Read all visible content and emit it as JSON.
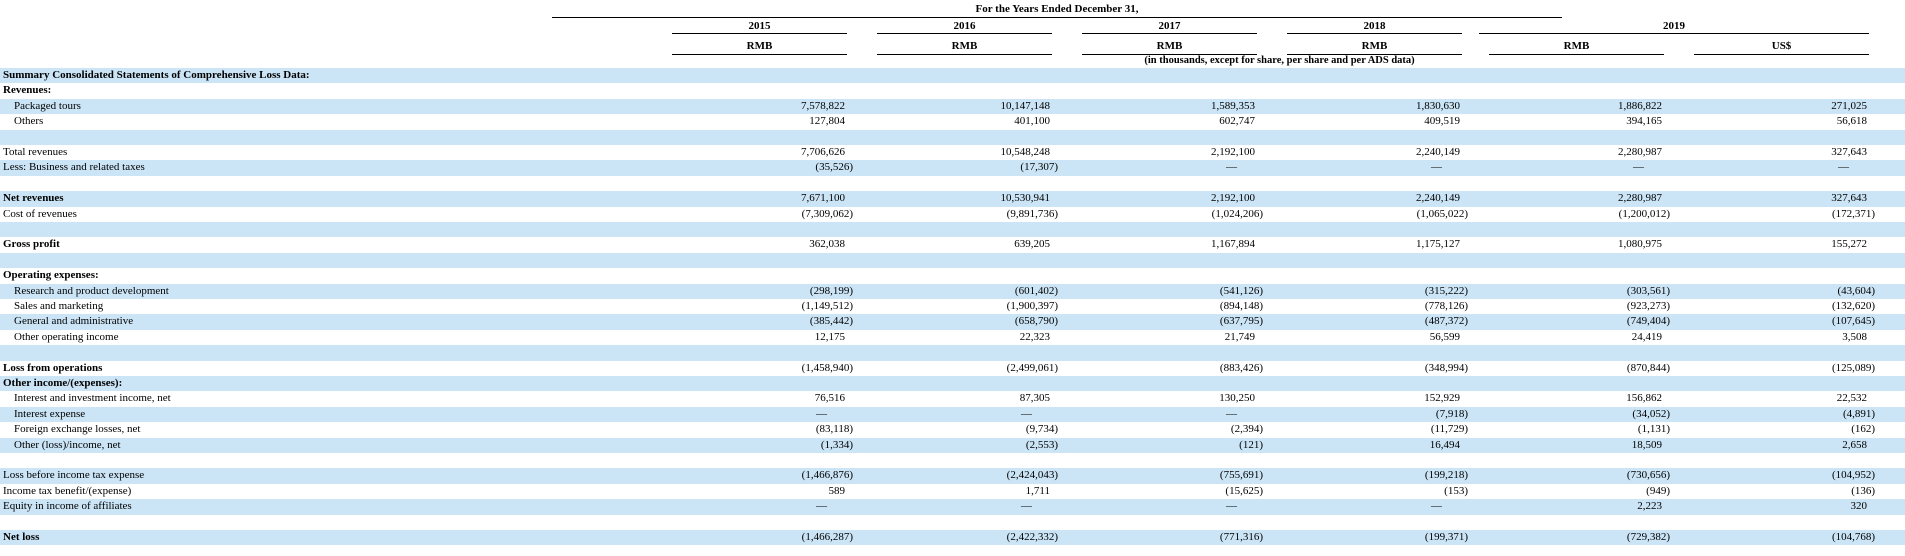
{
  "colors": {
    "row_highlight": "#cbe5f6",
    "text": "#000000",
    "rule": "#000000"
  },
  "header": {
    "spanner": "For the Years Ended December 31,",
    "note": "(in thousands, except for share, per share and per ADS data)",
    "years": [
      "2015",
      "2016",
      "2017",
      "2018",
      "2019"
    ],
    "currencies": [
      "RMB",
      "RMB",
      "RMB",
      "RMB",
      "RMB",
      "US$"
    ]
  },
  "table": {
    "rows": [
      {
        "label": "Summary Consolidated Statements of Comprehensive Loss Data:",
        "bold": true,
        "indent": false,
        "shaded": true,
        "values": [
          "",
          "",
          "",
          "",
          "",
          ""
        ]
      },
      {
        "label": "Revenues:",
        "bold": true,
        "indent": false,
        "shaded": false,
        "values": [
          "",
          "",
          "",
          "",
          "",
          ""
        ]
      },
      {
        "label": "Packaged tours",
        "bold": false,
        "indent": true,
        "shaded": true,
        "values": [
          "7,578,822",
          "10,147,148",
          "1,589,353",
          "1,830,630",
          "1,886,822",
          "271,025"
        ]
      },
      {
        "label": "Others",
        "bold": false,
        "indent": true,
        "shaded": false,
        "values": [
          "127,804",
          "401,100",
          "602,747",
          "409,519",
          "394,165",
          "56,618"
        ]
      },
      {
        "label": "",
        "bold": false,
        "indent": false,
        "shaded": true,
        "values": [
          "",
          "",
          "",
          "",
          "",
          ""
        ]
      },
      {
        "label": "Total revenues",
        "bold": false,
        "indent": false,
        "shaded": false,
        "values": [
          "7,706,626",
          "10,548,248",
          "2,192,100",
          "2,240,149",
          "2,280,987",
          "327,643"
        ]
      },
      {
        "label": "Less: Business and related taxes",
        "bold": false,
        "indent": false,
        "shaded": true,
        "values": [
          "(35,526)",
          "(17,307)",
          "—",
          "—",
          "—",
          "—"
        ]
      },
      {
        "label": "",
        "bold": false,
        "indent": false,
        "shaded": false,
        "values": [
          "",
          "",
          "",
          "",
          "",
          ""
        ]
      },
      {
        "label": "Net revenues",
        "bold": true,
        "indent": false,
        "shaded": true,
        "values": [
          "7,671,100",
          "10,530,941",
          "2,192,100",
          "2,240,149",
          "2,280,987",
          "327,643"
        ]
      },
      {
        "label": "Cost of revenues",
        "bold": false,
        "indent": false,
        "shaded": false,
        "values": [
          "(7,309,062)",
          "(9,891,736)",
          "(1,024,206)",
          "(1,065,022)",
          "(1,200,012)",
          "(172,371)"
        ]
      },
      {
        "label": "",
        "bold": false,
        "indent": false,
        "shaded": true,
        "values": [
          "",
          "",
          "",
          "",
          "",
          ""
        ]
      },
      {
        "label": "Gross profit",
        "bold": true,
        "indent": false,
        "shaded": false,
        "values": [
          "362,038",
          "639,205",
          "1,167,894",
          "1,175,127",
          "1,080,975",
          "155,272"
        ]
      },
      {
        "label": "",
        "bold": false,
        "indent": false,
        "shaded": true,
        "values": [
          "",
          "",
          "",
          "",
          "",
          ""
        ]
      },
      {
        "label": "Operating expenses:",
        "bold": true,
        "indent": false,
        "shaded": false,
        "values": [
          "",
          "",
          "",
          "",
          "",
          ""
        ]
      },
      {
        "label": "Research and product development",
        "bold": false,
        "indent": true,
        "shaded": true,
        "values": [
          "(298,199)",
          "(601,402)",
          "(541,126)",
          "(315,222)",
          "(303,561)",
          "(43,604)"
        ]
      },
      {
        "label": "Sales and marketing",
        "bold": false,
        "indent": true,
        "shaded": false,
        "values": [
          "(1,149,512)",
          "(1,900,397)",
          "(894,148)",
          "(778,126)",
          "(923,273)",
          "(132,620)"
        ]
      },
      {
        "label": "General and administrative",
        "bold": false,
        "indent": true,
        "shaded": true,
        "values": [
          "(385,442)",
          "(658,790)",
          "(637,795)",
          "(487,372)",
          "(749,404)",
          "(107,645)"
        ]
      },
      {
        "label": "Other operating income",
        "bold": false,
        "indent": true,
        "shaded": false,
        "values": [
          "12,175",
          "22,323",
          "21,749",
          "56,599",
          "24,419",
          "3,508"
        ]
      },
      {
        "label": "",
        "bold": false,
        "indent": false,
        "shaded": true,
        "values": [
          "",
          "",
          "",
          "",
          "",
          ""
        ]
      },
      {
        "label": "Loss from operations",
        "bold": true,
        "indent": false,
        "shaded": false,
        "values": [
          "(1,458,940)",
          "(2,499,061)",
          "(883,426)",
          "(348,994)",
          "(870,844)",
          "(125,089)"
        ]
      },
      {
        "label": "Other income/(expenses):",
        "bold": true,
        "indent": false,
        "shaded": true,
        "values": [
          "",
          "",
          "",
          "",
          "",
          ""
        ]
      },
      {
        "label": "Interest and investment income, net",
        "bold": false,
        "indent": true,
        "shaded": false,
        "values": [
          "76,516",
          "87,305",
          "130,250",
          "152,929",
          "156,862",
          "22,532"
        ]
      },
      {
        "label": "Interest expense",
        "bold": false,
        "indent": true,
        "shaded": true,
        "values": [
          "—",
          "—",
          "—",
          "(7,918)",
          "(34,052)",
          "(4,891)"
        ]
      },
      {
        "label": "Foreign exchange losses, net",
        "bold": false,
        "indent": true,
        "shaded": false,
        "values": [
          "(83,118)",
          "(9,734)",
          "(2,394)",
          "(11,729)",
          "(1,131)",
          "(162)"
        ]
      },
      {
        "label": "Other (loss)/income, net",
        "bold": false,
        "indent": true,
        "shaded": true,
        "values": [
          "(1,334)",
          "(2,553)",
          "(121)",
          "16,494",
          "18,509",
          "2,658"
        ]
      },
      {
        "label": "",
        "bold": false,
        "indent": false,
        "shaded": false,
        "values": [
          "",
          "",
          "",
          "",
          "",
          ""
        ]
      },
      {
        "label": "Loss before income tax expense",
        "bold": false,
        "indent": false,
        "shaded": true,
        "values": [
          "(1,466,876)",
          "(2,424,043)",
          "(755,691)",
          "(199,218)",
          "(730,656)",
          "(104,952)"
        ]
      },
      {
        "label": "Income tax benefit/(expense)",
        "bold": false,
        "indent": false,
        "shaded": false,
        "values": [
          "589",
          "1,711",
          "(15,625)",
          "(153)",
          "(949)",
          "(136)"
        ]
      },
      {
        "label": "Equity in income of affiliates",
        "bold": false,
        "indent": false,
        "shaded": true,
        "values": [
          "—",
          "—",
          "—",
          "—",
          "2,223",
          "320"
        ]
      },
      {
        "label": "",
        "bold": false,
        "indent": false,
        "shaded": false,
        "values": [
          "",
          "",
          "",
          "",
          "",
          ""
        ]
      },
      {
        "label": "Net loss",
        "bold": true,
        "indent": false,
        "shaded": true,
        "values": [
          "(1,466,287)",
          "(2,422,332)",
          "(771,316)",
          "(199,371)",
          "(729,382)",
          "(104,768)"
        ]
      }
    ]
  }
}
